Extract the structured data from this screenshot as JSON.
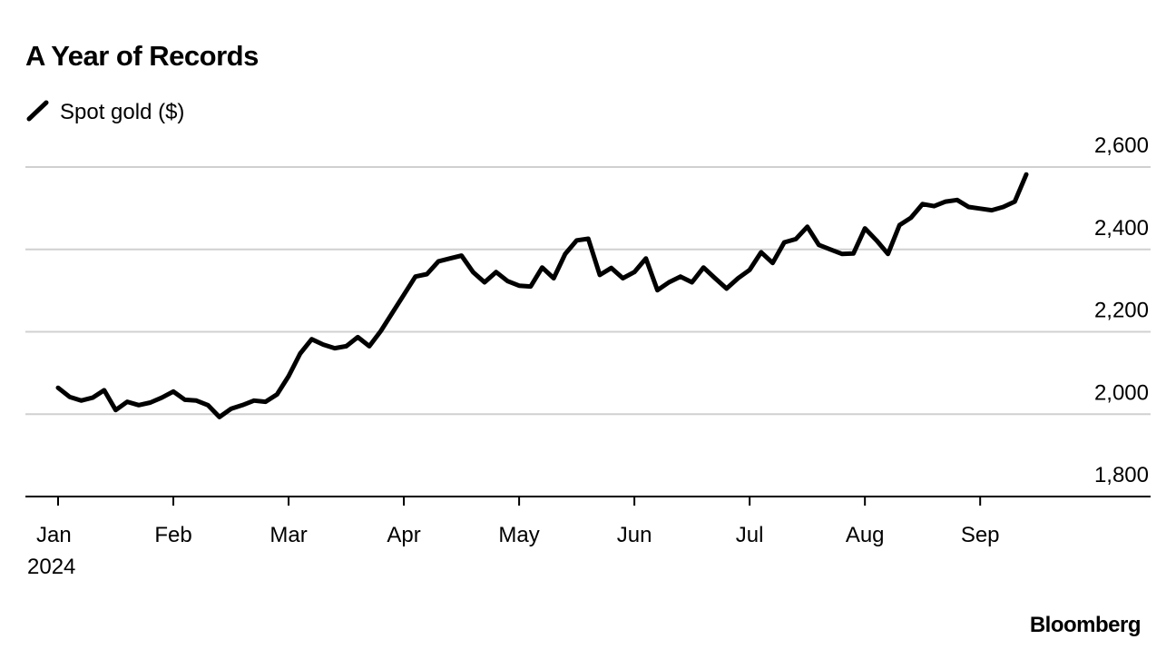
{
  "chart_data": {
    "type": "line",
    "title": "A Year of Records",
    "source": "Bloomberg",
    "year_label": "2024",
    "categories": [
      "Jan",
      null,
      null,
      null,
      null,
      null,
      null,
      null,
      null,
      null,
      "Feb",
      null,
      null,
      null,
      null,
      null,
      null,
      null,
      null,
      null,
      "Mar",
      null,
      null,
      null,
      null,
      null,
      null,
      null,
      null,
      null,
      "Apr",
      null,
      null,
      null,
      null,
      null,
      null,
      null,
      null,
      null,
      "May",
      null,
      null,
      null,
      null,
      null,
      null,
      null,
      null,
      null,
      "Jun",
      null,
      null,
      null,
      null,
      null,
      null,
      null,
      null,
      null,
      "Jul",
      null,
      null,
      null,
      null,
      null,
      null,
      null,
      null,
      null,
      "Aug",
      null,
      null,
      null,
      null,
      null,
      null,
      null,
      null,
      null,
      "Sep",
      null,
      null,
      null,
      null
    ],
    "series": [
      {
        "name": "Spot gold ($)",
        "color": "#000000",
        "values": [
          2064,
          2042,
          2033,
          2040,
          2058,
          2010,
          2030,
          2022,
          2028,
          2040,
          2055,
          2035,
          2033,
          2022,
          1993,
          2013,
          2022,
          2033,
          2030,
          2048,
          2092,
          2147,
          2182,
          2169,
          2160,
          2165,
          2187,
          2165,
          2202,
          2246,
          2290,
          2334,
          2340,
          2371,
          2378,
          2385,
          2345,
          2320,
          2345,
          2323,
          2312,
          2310,
          2356,
          2330,
          2389,
          2422,
          2426,
          2338,
          2355,
          2330,
          2345,
          2378,
          2301,
          2320,
          2334,
          2320,
          2356,
          2330,
          2305,
          2330,
          2350,
          2393,
          2367,
          2417,
          2425,
          2455,
          2411,
          2400,
          2389,
          2390,
          2451,
          2422,
          2389,
          2459,
          2477,
          2510,
          2505,
          2516,
          2520,
          2503,
          2499,
          2495,
          2503,
          2516,
          2582
        ]
      }
    ],
    "ylim": [
      1800,
      2600
    ],
    "yticks": [
      {
        "value": 1800,
        "label": "1,800"
      },
      {
        "value": 2000,
        "label": "2,000"
      },
      {
        "value": 2200,
        "label": "2,200"
      },
      {
        "value": 2400,
        "label": "2,400"
      },
      {
        "value": 2600,
        "label": "2,600"
      }
    ],
    "grid": true
  }
}
